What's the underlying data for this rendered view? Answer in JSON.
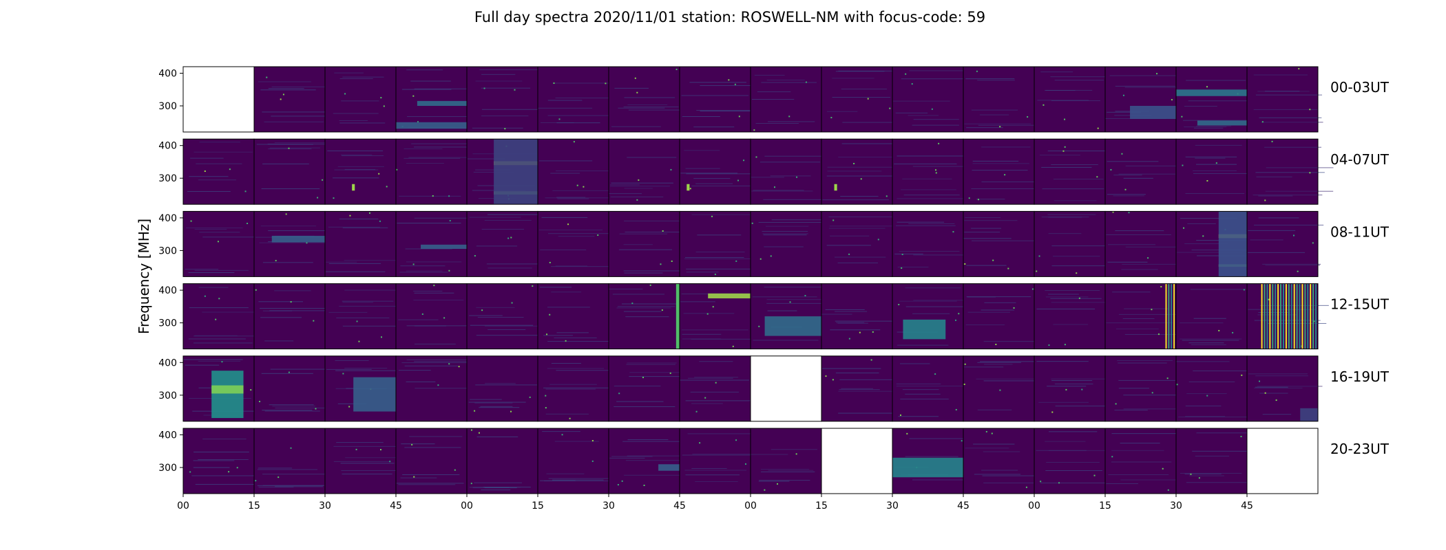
{
  "chart_data": {
    "type": "heatmap",
    "title": "Full day spectra 2020/11/01 station: ROSWELL-NM with focus-code: 59",
    "ylabel": "Frequency [MHz]",
    "xlabel": "",
    "y_ticks": [
      300,
      400
    ],
    "ylim": [
      220,
      420
    ],
    "x_tick_labels": [
      "00",
      "15",
      "30",
      "45",
      "00",
      "15",
      "30",
      "45",
      "00",
      "15",
      "30",
      "45",
      "00",
      "15",
      "30",
      "45"
    ],
    "panels_per_row": 16,
    "panel_minutes": 15,
    "rows": [
      {
        "label": "00-03UT",
        "missing": [
          0
        ],
        "features": [
          {
            "panel": 3,
            "kind": "band",
            "y0": 300,
            "y1": 315,
            "x0": 0.3,
            "x1": 1.0,
            "intensity": 0.35
          },
          {
            "panel": 3,
            "kind": "band",
            "y0": 230,
            "y1": 250,
            "x0": 0.0,
            "x1": 1.0,
            "intensity": 0.3
          },
          {
            "panel": 13,
            "kind": "band",
            "y0": 260,
            "y1": 300,
            "x0": 0.35,
            "x1": 1.0,
            "intensity": 0.25
          },
          {
            "panel": 14,
            "kind": "band",
            "y0": 330,
            "y1": 350,
            "x0": 0.0,
            "x1": 1.0,
            "intensity": 0.4
          },
          {
            "panel": 14,
            "kind": "band",
            "y0": 240,
            "y1": 255,
            "x0": 0.3,
            "x1": 1.0,
            "intensity": 0.35
          }
        ]
      },
      {
        "label": "04-07UT",
        "missing": [],
        "features": [
          {
            "panel": 4,
            "kind": "band",
            "y0": 340,
            "y1": 352,
            "x0": 0.38,
            "x1": 1.0,
            "intensity": 0.95
          },
          {
            "panel": 4,
            "kind": "band",
            "y0": 250,
            "y1": 260,
            "x0": 0.38,
            "x1": 1.0,
            "intensity": 0.8
          },
          {
            "panel": 4,
            "kind": "band",
            "y0": 220,
            "y1": 420,
            "x0": 0.38,
            "x1": 1.0,
            "intensity": 0.2
          },
          {
            "panel": 2,
            "kind": "spike",
            "y0": 262,
            "y1": 282,
            "x0": 0.38,
            "x1": 0.42,
            "intensity": 0.85
          },
          {
            "panel": 7,
            "kind": "spike",
            "y0": 262,
            "y1": 282,
            "x0": 0.1,
            "x1": 0.14,
            "intensity": 0.85
          },
          {
            "panel": 9,
            "kind": "spike",
            "y0": 262,
            "y1": 282,
            "x0": 0.18,
            "x1": 0.22,
            "intensity": 0.85
          }
        ]
      },
      {
        "label": "08-11UT",
        "missing": [],
        "features": [
          {
            "panel": 1,
            "kind": "band",
            "y0": 325,
            "y1": 345,
            "x0": 0.25,
            "x1": 1.0,
            "intensity": 0.3
          },
          {
            "panel": 3,
            "kind": "band",
            "y0": 305,
            "y1": 318,
            "x0": 0.35,
            "x1": 1.0,
            "intensity": 0.3
          },
          {
            "panel": 14,
            "kind": "band",
            "y0": 338,
            "y1": 350,
            "x0": 0.6,
            "x1": 1.0,
            "intensity": 0.95
          },
          {
            "panel": 14,
            "kind": "band",
            "y0": 250,
            "y1": 258,
            "x0": 0.6,
            "x1": 1.0,
            "intensity": 0.8
          },
          {
            "panel": 14,
            "kind": "band",
            "y0": 220,
            "y1": 420,
            "x0": 0.6,
            "x1": 1.0,
            "intensity": 0.25
          }
        ]
      },
      {
        "label": "12-15UT",
        "missing": [],
        "features": [
          {
            "panel": 7,
            "kind": "band",
            "y0": 375,
            "y1": 390,
            "x0": 0.4,
            "x1": 1.0,
            "intensity": 0.85
          },
          {
            "panel": 8,
            "kind": "band",
            "y0": 260,
            "y1": 320,
            "x0": 0.2,
            "x1": 1.0,
            "intensity": 0.35
          },
          {
            "panel": 10,
            "kind": "band",
            "y0": 250,
            "y1": 310,
            "x0": 0.15,
            "x1": 0.75,
            "intensity": 0.45
          },
          {
            "panel": 6,
            "kind": "spike",
            "y0": 220,
            "y1": 420,
            "x0": 0.95,
            "x1": 1.0,
            "intensity": 0.7
          },
          {
            "panel": 13,
            "kind": "stripes",
            "y0": 220,
            "y1": 420,
            "x0": 0.85,
            "x1": 1.0,
            "intensity": 1.0
          },
          {
            "panel": 15,
            "kind": "stripes",
            "y0": 220,
            "y1": 420,
            "x0": 0.2,
            "x1": 1.0,
            "intensity": 1.0
          }
        ]
      },
      {
        "label": "16-19UT",
        "missing": [
          8
        ],
        "features": [
          {
            "panel": 0,
            "kind": "band",
            "y0": 230,
            "y1": 375,
            "x0": 0.4,
            "x1": 0.85,
            "intensity": 0.5
          },
          {
            "panel": 0,
            "kind": "band",
            "y0": 305,
            "y1": 330,
            "x0": 0.4,
            "x1": 0.85,
            "intensity": 0.8
          },
          {
            "panel": 2,
            "kind": "band",
            "y0": 250,
            "y1": 355,
            "x0": 0.4,
            "x1": 1.0,
            "intensity": 0.3
          },
          {
            "panel": 15,
            "kind": "band",
            "y0": 220,
            "y1": 260,
            "x0": 0.75,
            "x1": 1.0,
            "intensity": 0.2
          }
        ]
      },
      {
        "label": "20-23UT",
        "missing": [
          9,
          15
        ],
        "features": [
          {
            "panel": 10,
            "kind": "band",
            "y0": 270,
            "y1": 330,
            "x0": 0.0,
            "x1": 1.0,
            "intensity": 0.45
          },
          {
            "panel": 6,
            "kind": "band",
            "y0": 290,
            "y1": 310,
            "x0": 0.7,
            "x1": 1.0,
            "intensity": 0.3
          }
        ]
      }
    ],
    "colormap": [
      "#440154",
      "#3b528b",
      "#21918c",
      "#5ec962",
      "#fde725"
    ]
  }
}
